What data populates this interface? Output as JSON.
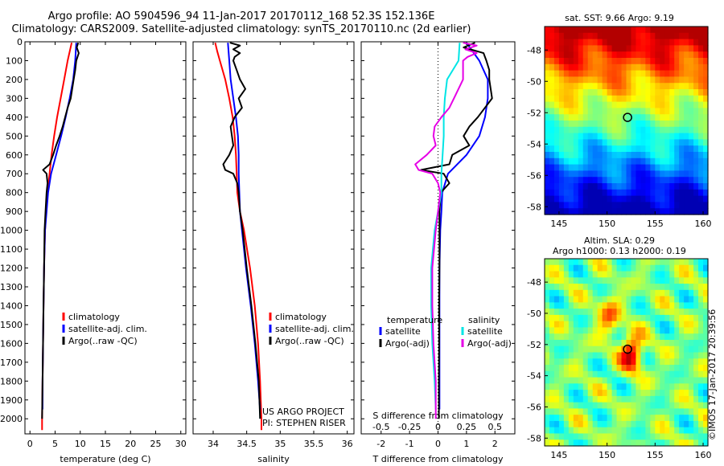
{
  "header": {
    "line1": "Argo profile: AO 5904596_94 11-Jan-2017 20170112_168 52.3S 152.136E",
    "line2": "Climatology: CARS2009. Satellite-adjusted climatology: synTS_20170110.nc (2d earlier)"
  },
  "colors": {
    "climatology": "#ff0000",
    "satellite": "#0000ff",
    "argo": "#000000",
    "salinity_sat": "#00e5e5",
    "salinity_argo": "#e600e6"
  },
  "chart_data": [
    {
      "type": "line",
      "xlabel": "temperature (deg C)",
      "ylabel": "",
      "xlim": [
        -1,
        31
      ],
      "ylim": [
        2080,
        0
      ],
      "xticks": [
        "0",
        "5",
        "10",
        "15",
        "20",
        "25",
        "30"
      ],
      "yticks": [
        "0",
        "100",
        "200",
        "300",
        "400",
        "500",
        "600",
        "700",
        "800",
        "900",
        "1000",
        "1100",
        "1200",
        "1300",
        "1400",
        "1500",
        "1600",
        "1700",
        "1800",
        "1900",
        "2000"
      ],
      "legend": [
        "climatology",
        "satellite-adj. clim.",
        "Argo(..raw -QC)"
      ],
      "legend_position": "lower-right",
      "series": [
        {
          "name": "climatology",
          "depth": [
            5,
            100,
            200,
            300,
            400,
            500,
            600,
            700,
            800,
            900,
            1000,
            1200,
            1400,
            1600,
            1800,
            2000,
            2060
          ],
          "values": [
            8.3,
            7.5,
            6.8,
            6.1,
            5.4,
            4.8,
            4.3,
            3.9,
            3.5,
            3.2,
            3.0,
            2.8,
            2.7,
            2.6,
            2.5,
            2.4,
            2.4
          ]
        },
        {
          "name": "satellite-adj. clim.",
          "depth": [
            5,
            100,
            200,
            300,
            400,
            500,
            600,
            700,
            800,
            900,
            1000,
            1200,
            1400,
            1600,
            1800,
            1950
          ],
          "values": [
            9.2,
            9.0,
            8.6,
            7.9,
            7.1,
            6.2,
            5.2,
            4.2,
            3.6,
            3.3,
            3.0,
            2.8,
            2.7,
            2.6,
            2.5,
            2.5
          ]
        },
        {
          "name": "Argo(..raw -QC)",
          "depth": [
            5,
            30,
            60,
            100,
            150,
            200,
            300,
            350,
            400,
            450,
            500,
            550,
            600,
            650,
            680,
            700,
            750,
            800,
            900,
            1000,
            1200,
            1400,
            1600,
            1800,
            2000
          ],
          "values": [
            9.6,
            9.3,
            9.7,
            9.2,
            9.0,
            8.7,
            8.1,
            7.5,
            7.0,
            6.5,
            5.9,
            5.2,
            4.6,
            3.9,
            2.6,
            3.3,
            3.5,
            3.3,
            3.1,
            2.9,
            2.8,
            2.7,
            2.6,
            2.5,
            2.4
          ]
        }
      ]
    },
    {
      "type": "line",
      "xlabel": "salinity",
      "xlim": [
        33.7,
        36.1
      ],
      "ylim": [
        2080,
        0
      ],
      "xticks": [
        "34",
        "34.5",
        "35",
        "35.5",
        "36"
      ],
      "legend": [
        "climatology",
        "satellite-adj. clim.",
        "Argo(..raw -QC)"
      ],
      "legend_position": "lower-right",
      "annotations": [
        "US ARGO PROJECT",
        "PI: STEPHEN RISER"
      ],
      "series": [
        {
          "name": "climatology",
          "depth": [
            5,
            50,
            100,
            200,
            300,
            400,
            500,
            600,
            700,
            800,
            900,
            1000,
            1200,
            1400,
            1600,
            1800,
            2000,
            2060
          ],
          "values": [
            34.03,
            34.06,
            34.1,
            34.18,
            34.24,
            34.29,
            34.32,
            34.34,
            34.35,
            34.36,
            34.4,
            34.46,
            34.55,
            34.62,
            34.67,
            34.7,
            34.72,
            34.72
          ]
        },
        {
          "name": "satellite-adj. clim.",
          "depth": [
            5,
            100,
            200,
            300,
            400,
            500,
            600,
            700,
            800,
            900,
            1000,
            1200,
            1400,
            1600,
            1800,
            1950
          ],
          "values": [
            34.22,
            34.24,
            34.26,
            34.3,
            34.34,
            34.37,
            34.38,
            34.38,
            34.39,
            34.4,
            34.43,
            34.49,
            34.56,
            34.62,
            34.67,
            34.7
          ]
        },
        {
          "name": "Argo(..raw -QC)",
          "depth": [
            5,
            20,
            40,
            60,
            80,
            100,
            150,
            200,
            250,
            300,
            350,
            400,
            450,
            500,
            550,
            600,
            650,
            680,
            700,
            750,
            800,
            900,
            1000,
            1200,
            1400,
            1600,
            1800,
            2000
          ],
          "values": [
            34.25,
            34.4,
            34.3,
            34.4,
            34.32,
            34.3,
            34.35,
            34.4,
            34.48,
            34.38,
            34.43,
            34.32,
            34.26,
            34.28,
            34.3,
            34.24,
            34.15,
            34.18,
            34.3,
            34.36,
            34.38,
            34.4,
            34.44,
            34.5,
            34.57,
            34.63,
            34.68,
            34.7
          ]
        }
      ]
    },
    {
      "type": "line",
      "xlabel": "T difference from climatology",
      "xlabel_top": "S difference from climatology",
      "xlim": [
        -2.7,
        2.7
      ],
      "ylim": [
        2080,
        0
      ],
      "xticks": [
        "-2",
        "-1",
        "0",
        "1",
        "2"
      ],
      "xticks_top": [
        "-0.5",
        "-0.25",
        "0",
        "0.25",
        "0.5"
      ],
      "legend_temperature_title": "temperature",
      "legend_salinity_title": "salinity",
      "legend": [
        "satellite",
        "Argo(-adj)",
        "satellite",
        "Argo(-adj)"
      ],
      "series": [
        {
          "name": "temperature satellite",
          "depth": [
            5,
            100,
            200,
            300,
            400,
            500,
            600,
            700,
            800,
            900,
            1000,
            1200,
            1400,
            1600,
            1800,
            1950
          ],
          "values": [
            1.0,
            1.45,
            1.75,
            1.75,
            1.65,
            1.45,
            1.0,
            0.35,
            0.15,
            0.12,
            0.08,
            0.05,
            0.05,
            0.05,
            0.05,
            0.05
          ]
        },
        {
          "name": "temperature Argo(-adj)",
          "depth": [
            5,
            30,
            60,
            100,
            150,
            200,
            300,
            400,
            450,
            500,
            550,
            600,
            650,
            680,
            700,
            750,
            800,
            900,
            1000,
            1200,
            1400,
            1600,
            1800,
            2000
          ],
          "values": [
            1.3,
            0.9,
            1.6,
            1.7,
            1.8,
            1.8,
            1.9,
            1.4,
            1.1,
            0.9,
            1.1,
            0.5,
            0.4,
            -0.6,
            0.2,
            0.4,
            0.1,
            0.05,
            0.05,
            0.05,
            0.04,
            0.04,
            0.03,
            0.03
          ]
        },
        {
          "name": "salinity satellite",
          "depth": [
            5,
            100,
            200,
            300,
            400,
            500,
            600,
            700,
            800,
            900,
            1000,
            1200,
            1400,
            1600,
            1800,
            1950
          ],
          "values": [
            0.19,
            0.18,
            0.08,
            0.06,
            0.05,
            0.05,
            0.04,
            0.03,
            0.03,
            0.0,
            -0.03,
            -0.06,
            -0.06,
            -0.05,
            -0.03,
            -0.02
          ]
        },
        {
          "name": "salinity Argo(-adj)",
          "depth": [
            5,
            20,
            40,
            60,
            80,
            100,
            200,
            300,
            350,
            400,
            450,
            500,
            550,
            600,
            650,
            680,
            700,
            750,
            800,
            900,
            1000,
            1200,
            1400,
            1600,
            1800,
            2000
          ],
          "values": [
            0.22,
            0.34,
            0.24,
            0.34,
            0.26,
            0.22,
            0.22,
            0.14,
            0.1,
            0.03,
            -0.03,
            -0.04,
            -0.02,
            -0.1,
            -0.2,
            -0.17,
            -0.05,
            0.0,
            0.02,
            0.0,
            -0.02,
            -0.05,
            -0.05,
            -0.04,
            -0.02,
            -0.02
          ]
        }
      ]
    },
    {
      "type": "heatmap",
      "title": "sat. SST: 9.66 Argo: 9.19",
      "xlim": [
        143.5,
        160.5
      ],
      "ylim": [
        -58.5,
        -46.5
      ],
      "xticks": [
        "145",
        "150",
        "155",
        "160"
      ],
      "yticks": [
        "-48",
        "-50",
        "-52",
        "-54",
        "-56",
        "-58"
      ],
      "marker": {
        "lon": 152.136,
        "lat": -52.3
      }
    },
    {
      "type": "heatmap",
      "title": "Altim. SLA: 0.29",
      "subtitle": "Argo h1000: 0.13 h2000: 0.19",
      "xlim": [
        143.5,
        160.5
      ],
      "ylim": [
        -58.5,
        -46.5
      ],
      "xticks": [
        "145",
        "150",
        "155",
        "160"
      ],
      "yticks": [
        "-48",
        "-50",
        "-52",
        "-54",
        "-56",
        "-58"
      ],
      "marker": {
        "lon": 152.136,
        "lat": -52.3
      }
    }
  ],
  "footer": {
    "credit": "©IMOS 17-Jan-2017 20:39:56"
  }
}
